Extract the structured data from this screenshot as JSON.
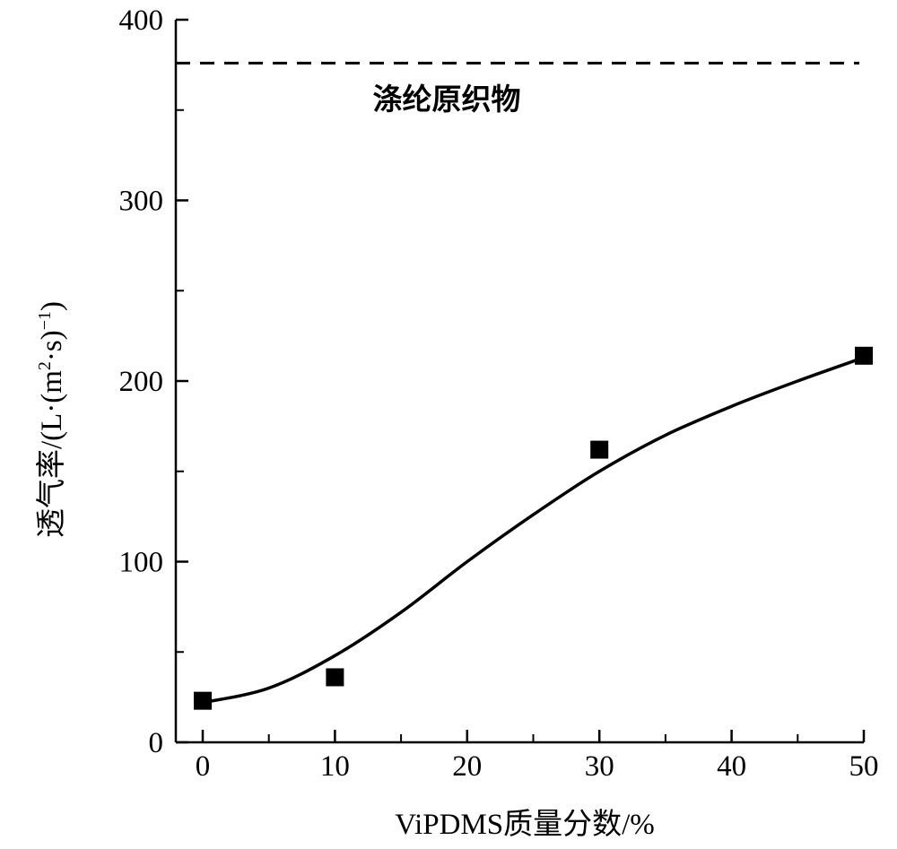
{
  "chart_data": {
    "type": "scatter",
    "xlabel": "ViPDMS质量分数/%",
    "ylabel_main": "透气率/(L·(m",
    "ylabel_sup": "2",
    "ylabel_mid": "·s)",
    "ylabel_sup2": "−1",
    "ylabel_end": ")",
    "xlim": [
      -2,
      50
    ],
    "ylim": [
      0,
      400
    ],
    "x_ticks": [
      0,
      10,
      20,
      30,
      40,
      50
    ],
    "x_tick_labels": [
      "0",
      "10",
      "20",
      "30",
      "40",
      "50"
    ],
    "x_minor_ticks": [
      5,
      15,
      25,
      35,
      45
    ],
    "y_ticks": [
      0,
      100,
      200,
      300,
      400
    ],
    "y_tick_labels": [
      "0",
      "100",
      "200",
      "300",
      "400"
    ],
    "y_minor_ticks": [
      50,
      150,
      250,
      350
    ],
    "series": [
      {
        "marker": "square",
        "x": [
          0,
          10,
          30,
          50
        ],
        "y": [
          23,
          36,
          162,
          214
        ]
      }
    ],
    "fit_curve": {
      "x": [
        0,
        5,
        10,
        15,
        20,
        25,
        30,
        35,
        40,
        45,
        50
      ],
      "y": [
        22,
        30,
        48,
        72,
        100,
        126,
        150,
        170,
        186,
        200,
        213
      ]
    },
    "reference_line": {
      "y": 376,
      "style": "dashed",
      "label": "涤纶原织物"
    },
    "grid": false,
    "legend": "none"
  }
}
